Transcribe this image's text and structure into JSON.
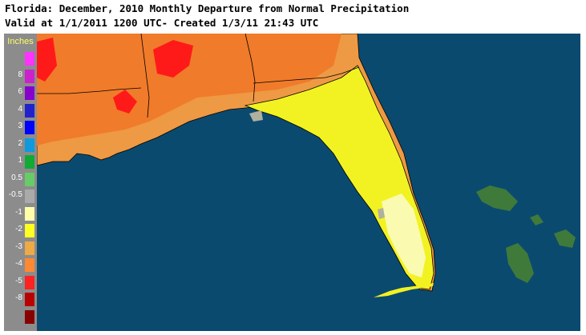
{
  "title": {
    "line1": "Florida: December, 2010 Monthly Departure from Normal Precipitation",
    "line2": "Valid at 1/1/2011 1200 UTC- Created 1/3/11 21:43 UTC"
  },
  "legend": {
    "title": "Inches",
    "items": [
      {
        "label": "",
        "color": "#ff33ff"
      },
      {
        "label": "8",
        "color": "#cc22cc"
      },
      {
        "label": "6",
        "color": "#8800cc"
      },
      {
        "label": "4",
        "color": "#2222cc"
      },
      {
        "label": "3",
        "color": "#0000ff"
      },
      {
        "label": "2",
        "color": "#1199dd"
      },
      {
        "label": "1",
        "color": "#11aa33"
      },
      {
        "label": "0.5",
        "color": "#66cc66"
      },
      {
        "label": "-0.5",
        "color": "#aaaaaa"
      },
      {
        "label": "-1",
        "color": "#ffffaa"
      },
      {
        "label": "-2",
        "color": "#ffff22"
      },
      {
        "label": "-3",
        "color": "#eeaa44"
      },
      {
        "label": "-4",
        "color": "#ff8833"
      },
      {
        "label": "-5",
        "color": "#ff2222"
      },
      {
        "label": "-8",
        "color": "#bb0000"
      },
      {
        "label": "",
        "color": "#880000"
      }
    ]
  },
  "colors": {
    "water": "#0b4a6f",
    "land_orange": "#ee9944",
    "land_dark_orange": "#f07b2a",
    "land_red": "#ff1a1a",
    "land_yellow": "#f2f222",
    "land_light_yellow": "#fafab0",
    "land_gray": "#b0b0a0",
    "island_green": "#3f7a3a",
    "outline": "#000000"
  },
  "map": {
    "region": "florida-southeast",
    "features": [
      "gulf-coast",
      "florida-peninsula",
      "florida-keys",
      "bahamas"
    ]
  }
}
